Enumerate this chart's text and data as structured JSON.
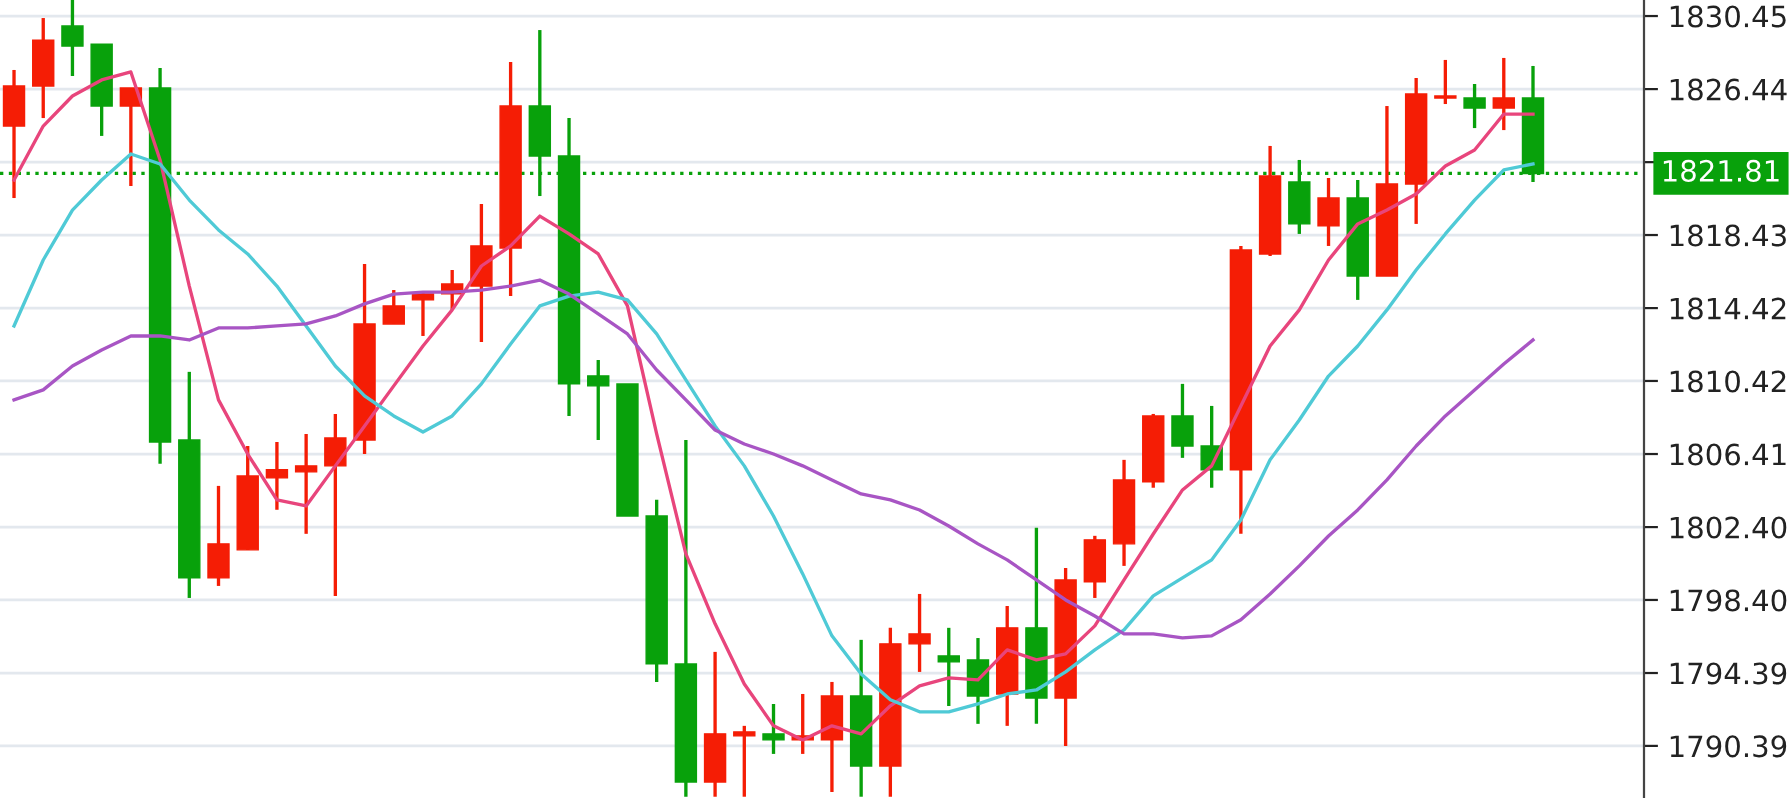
{
  "chart_data": {
    "type": "candlestick",
    "categories": [
      null,
      null,
      null,
      null,
      null,
      null,
      null,
      null,
      null,
      null,
      null,
      null,
      null,
      null,
      null,
      null,
      null,
      null,
      null,
      null,
      null,
      null,
      null,
      null,
      null,
      null,
      null,
      null,
      null,
      null,
      null,
      null,
      null,
      null,
      null,
      null,
      null,
      null,
      null,
      null,
      null,
      null,
      null,
      null,
      null,
      null,
      null,
      null,
      null,
      null,
      null,
      null,
      null
    ],
    "ohlc": [
      [
        1824.41,
        1827.49,
        1820.46,
        1826.61
      ],
      [
        1826.61,
        1830.34,
        1824.85,
        1829.13
      ],
      [
        1829.9,
        1831.33,
        1827.16,
        1828.8
      ],
      [
        1828.91,
        1828.91,
        1823.87,
        1825.51
      ],
      [
        1825.51,
        1826.5,
        1821.12,
        1826.5
      ],
      [
        1826.5,
        1827.6,
        1805.87,
        1807.07
      ],
      [
        1807.18,
        1810.92,
        1798.51,
        1799.61
      ],
      [
        1799.61,
        1804.66,
        1799.17,
        1801.48
      ],
      [
        1801.15,
        1806.85,
        1801.15,
        1805.21
      ],
      [
        1805.1,
        1807.07,
        1803.35,
        1805.55
      ],
      [
        1805.43,
        1807.51,
        1802.03,
        1805.76
      ],
      [
        1805.76,
        1808.61,
        1798.62,
        1807.29
      ],
      [
        1807.18,
        1816.84,
        1806.41,
        1813.55
      ],
      [
        1813.55,
        1815.41,
        1813.55,
        1814.54
      ],
      [
        1814.87,
        1815.3,
        1812.89,
        1815.2
      ],
      [
        1815.2,
        1816.51,
        1814.32,
        1815.74
      ],
      [
        1815.63,
        1820.13,
        1812.56,
        1817.83
      ],
      [
        1817.72,
        1827.93,
        1815.09,
        1825.51
      ],
      [
        1825.51,
        1829.68,
        1820.57,
        1822.77
      ],
      [
        1822.77,
        1824.85,
        1808.5,
        1810.26
      ],
      [
        1810.7,
        1811.57,
        1807.18,
        1810.15
      ],
      [
        1810.26,
        1810.26,
        1803.01,
        1803.01
      ],
      [
        1803.01,
        1803.9,
        1793.9,
        1794.89
      ],
      [
        1794.89,
        1807.18,
        1787.6,
        1788.41
      ],
      [
        1788.41,
        1795.55,
        1787.6,
        1791.05
      ],
      [
        1790.94,
        1791.49,
        1787.6,
        1791.16
      ],
      [
        1791.05,
        1792.69,
        1789.95,
        1790.72
      ],
      [
        1790.72,
        1793.24,
        1789.95,
        1790.94
      ],
      [
        1790.72,
        1793.9,
        1787.86,
        1793.13
      ],
      [
        1793.13,
        1796.21,
        1787.6,
        1789.29
      ],
      [
        1789.29,
        1796.87,
        1787.6,
        1795.99
      ],
      [
        1795.99,
        1798.73,
        1794.45,
        1796.54
      ],
      [
        1795.33,
        1796.87,
        1792.58,
        1795.0
      ],
      [
        1795.11,
        1796.31,
        1791.6,
        1793.13
      ],
      [
        1793.24,
        1798.07,
        1791.49,
        1796.87
      ],
      [
        1796.87,
        1802.36,
        1791.6,
        1793.02
      ],
      [
        1793.02,
        1800.16,
        1790.39,
        1799.5
      ],
      [
        1799.39,
        1801.92,
        1798.51,
        1801.7
      ],
      [
        1801.48,
        1806.09,
        1800.27,
        1804.99
      ],
      [
        1804.88,
        1808.61,
        1804.56,
        1808.5
      ],
      [
        1808.5,
        1810.26,
        1806.2,
        1806.85
      ],
      [
        1806.85,
        1809.05,
        1804.56,
        1805.55
      ],
      [
        1805.55,
        1817.83,
        1802.03,
        1817.61
      ],
      [
        1817.39,
        1823.32,
        1817.28,
        1821.67
      ],
      [
        1821.34,
        1822.55,
        1818.49,
        1819.04
      ],
      [
        1818.93,
        1821.56,
        1817.83,
        1820.46
      ],
      [
        1820.46,
        1821.45,
        1814.87,
        1816.18
      ],
      [
        1816.18,
        1825.51,
        1816.18,
        1821.23
      ],
      [
        1821.23,
        1827.05,
        1819.04,
        1826.17
      ],
      [
        1825.95,
        1828.04,
        1825.62,
        1826.06
      ],
      [
        1825.95,
        1826.72,
        1824.3,
        1825.4
      ],
      [
        1825.4,
        1828.15,
        1824.19,
        1825.95
      ],
      [
        1825.95,
        1827.71,
        1821.34,
        1821.81
      ]
    ],
    "colors": [
      "#f51d05",
      "#f51d05",
      "#08a10b",
      "#08a10b",
      "#f51d05",
      "#08a10b",
      "#08a10b",
      "#f51d05",
      "#f51d05",
      "#f51d05",
      "#f51d05",
      "#f51d05",
      "#f51d05",
      "#f51d05",
      "#f51d05",
      "#f51d05",
      "#f51d05",
      "#f51d05",
      "#08a10b",
      "#08a10b",
      "#08a10b",
      "#08a10b",
      "#08a10b",
      "#08a10b",
      "#f51d05",
      "#f51d05",
      "#08a10b",
      "#f51d05",
      "#f51d05",
      "#08a10b",
      "#f51d05",
      "#f51d05",
      "#08a10b",
      "#08a10b",
      "#f51d05",
      "#08a10b",
      "#f51d05",
      "#f51d05",
      "#f51d05",
      "#f51d05",
      "#08a10b",
      "#08a10b",
      "#f51d05",
      "#f51d05",
      "#08a10b",
      "#f51d05",
      "#08a10b",
      "#f51d05",
      "#f51d05",
      "#f51d05",
      "#08a10b",
      "#f51d05",
      "#08a10b"
    ],
    "series": [
      {
        "type": "line",
        "color": "#e8457c",
        "values": [
          1821.45,
          1824.41,
          1826.06,
          1826.94,
          1827.38,
          1822.55,
          1815.63,
          1809.38,
          1806.41,
          1803.89,
          1803.56,
          1805.76,
          1807.95,
          1810.15,
          1812.34,
          1814.32,
          1816.73,
          1817.83,
          1819.47,
          1818.49,
          1817.39,
          1814.54,
          1807.51,
          1800.93,
          1797.09,
          1793.79,
          1791.49,
          1790.72,
          1791.49,
          1791.05,
          1792.59,
          1793.68,
          1794.12,
          1794.01,
          1795.66,
          1795.11,
          1795.44,
          1796.98,
          1799.5,
          1802.02,
          1804.44,
          1805.76,
          1809.05,
          1812.34,
          1814.32,
          1817.06,
          1819.04,
          1819.8,
          1820.68,
          1822.22,
          1823.1,
          1825.07,
          1825.07
        ]
      },
      {
        "type": "line",
        "color": "#4fcad6",
        "values": [
          1813.44,
          1817.06,
          1819.8,
          1821.45,
          1822.88,
          1822.33,
          1820.35,
          1818.71,
          1817.39,
          1815.63,
          1813.44,
          1811.24,
          1809.6,
          1808.5,
          1807.62,
          1808.5,
          1810.26,
          1812.45,
          1814.54,
          1815.08,
          1815.3,
          1814.87,
          1813.0,
          1810.48,
          1807.95,
          1805.76,
          1803.01,
          1799.83,
          1796.43,
          1794.34,
          1792.92,
          1792.26,
          1792.26,
          1792.7,
          1793.24,
          1793.46,
          1794.45,
          1795.66,
          1796.76,
          1798.62,
          1799.61,
          1800.6,
          1802.79,
          1806.09,
          1808.28,
          1810.69,
          1812.34,
          1814.32,
          1816.51,
          1818.49,
          1820.35,
          1822.0,
          1822.33
        ]
      },
      {
        "type": "line",
        "color": "#a855c4",
        "values": [
          1809.38,
          1809.93,
          1811.24,
          1812.12,
          1812.89,
          1812.89,
          1812.67,
          1813.33,
          1813.33,
          1813.44,
          1813.55,
          1813.99,
          1814.65,
          1815.19,
          1815.3,
          1815.3,
          1815.41,
          1815.63,
          1815.96,
          1815.19,
          1814.1,
          1813.0,
          1811.02,
          1809.38,
          1807.73,
          1806.96,
          1806.41,
          1805.76,
          1804.99,
          1804.22,
          1803.89,
          1803.34,
          1802.46,
          1801.48,
          1800.6,
          1799.5,
          1798.4,
          1797.52,
          1796.54,
          1796.54,
          1796.32,
          1796.43,
          1797.31,
          1798.73,
          1800.27,
          1801.91,
          1803.34,
          1804.99,
          1806.85,
          1808.5,
          1809.93,
          1811.35,
          1812.67
        ]
      }
    ],
    "ylim": [
      1787.53,
      1831.33
    ],
    "yticks": [
      1830.45,
      1826.44,
      {
        "value": 1822.43,
        "label": null
      },
      1818.43,
      1814.42,
      1810.42,
      1806.41,
      {
        "value": 1802.4,
        "label": "1802.40"
      },
      {
        "value": 1798.4,
        "label": "1798.40"
      },
      1794.39,
      1790.39
    ],
    "ref_lines": [
      {
        "axis": "y",
        "value": 1821.81,
        "label": "1821.81",
        "color": "#08a10b",
        "line_style": "dotted"
      }
    ],
    "grid": "y",
    "tick_labels": "y"
  }
}
